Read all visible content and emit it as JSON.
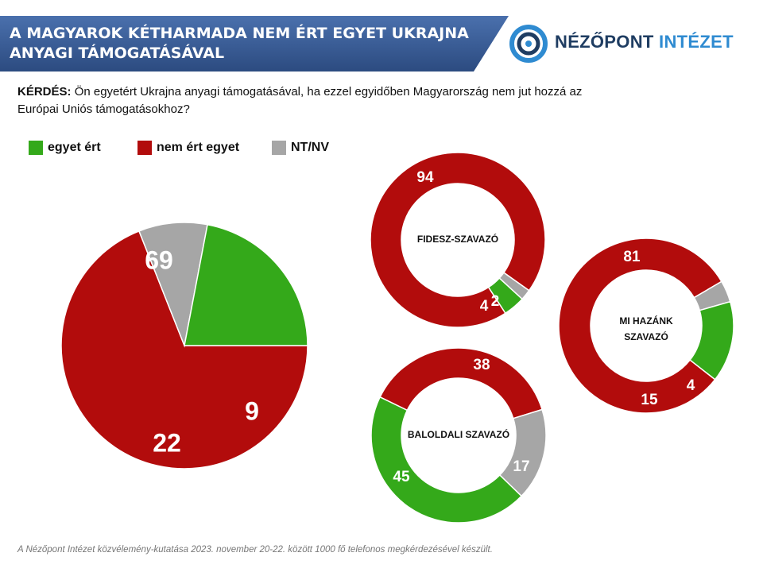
{
  "header": {
    "title_line1": "A MAGYAROK KÉTHARMADA NEM ÉRT EGYET UKRAJNA",
    "title_line2": "ANYAGI TÁMOGATÁSÁVAL",
    "banner_color": "#3a5d97",
    "logo_word1": "NÉZŐPONT",
    "logo_word2": "INTÉZET"
  },
  "question": {
    "label": "KÉRDÉS:",
    "text": "Ön egyetért Ukrajna anyagi támogatásával, ha ezzel egyidőben Magyarország nem jut hozzá az Európai Uniós támogatásokhoz?"
  },
  "legend": [
    {
      "label": "egyet ért",
      "color": "#34a91a"
    },
    {
      "label": "nem ért egyet",
      "color": "#b20c0c"
    },
    {
      "label": "NT/NV",
      "color": "#a6a6a6"
    }
  ],
  "chart_data": [
    {
      "type": "pie",
      "title": "",
      "categories": [
        "nem ért egyet",
        "NT/NV",
        "egyet ért"
      ],
      "values": [
        69,
        9,
        22
      ],
      "colors": [
        "#b20c0c",
        "#a6a6a6",
        "#34a91a"
      ]
    },
    {
      "type": "pie",
      "donut": true,
      "title": "FIDESZ-SZAVAZÓ",
      "categories": [
        "nem ért egyet",
        "NT/NV",
        "egyet ért"
      ],
      "values": [
        94,
        2,
        4
      ],
      "colors": [
        "#b20c0c",
        "#a6a6a6",
        "#34a91a"
      ]
    },
    {
      "type": "pie",
      "donut": true,
      "title": "MI HAZÁNK SZAVAZÓ",
      "categories": [
        "nem ért egyet",
        "NT/NV",
        "egyet ért"
      ],
      "values": [
        81,
        4,
        15
      ],
      "colors": [
        "#b20c0c",
        "#a6a6a6",
        "#34a91a"
      ]
    },
    {
      "type": "pie",
      "donut": true,
      "title": "BALOLDALI SZAVAZÓ",
      "categories": [
        "nem ért egyet",
        "NT/NV",
        "egyet ért"
      ],
      "values": [
        38,
        17,
        45
      ],
      "colors": [
        "#b20c0c",
        "#a6a6a6",
        "#34a91a"
      ]
    }
  ],
  "footnote": "A Nézőpont Intézet közvélemény-kutatása 2023. november 20-22. között 1000 fő telefonos megkérdezésével készült."
}
